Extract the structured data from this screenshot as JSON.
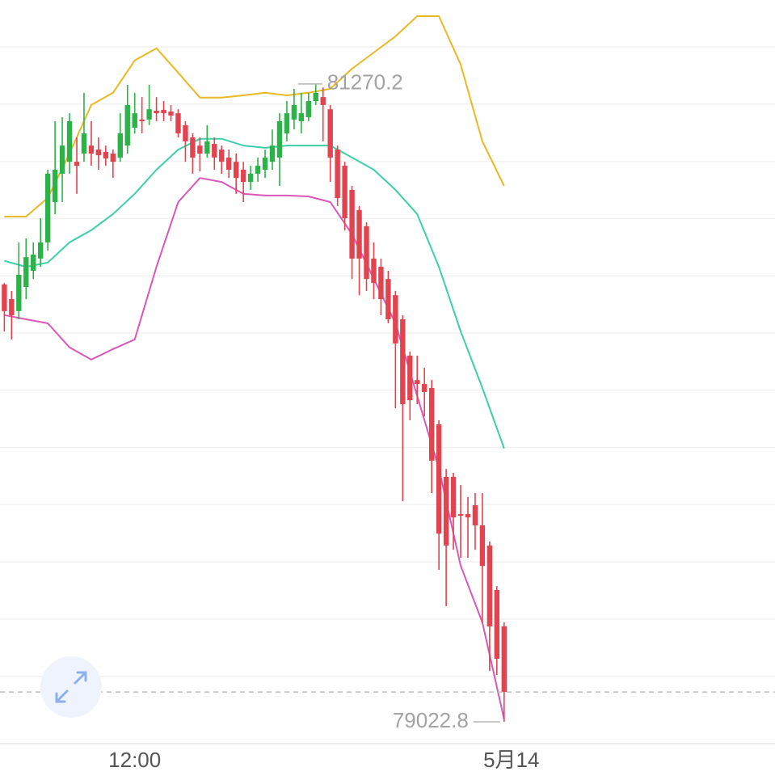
{
  "chart_data": {
    "type": "candlestick",
    "ylim": [
      78946,
      81566
    ],
    "xlim": [
      -0.6,
      106.4
    ],
    "xticks": [
      {
        "value": 18,
        "label": "12:00"
      },
      {
        "value": 70,
        "label": "5月14"
      }
    ],
    "grid": true,
    "up_color": "#2db24a",
    "down_color": "#e2434f",
    "open": [
      80564,
      80512,
      80470,
      80555,
      80612,
      80655,
      80712,
      80854,
      80954,
      80996,
      80996,
      81025,
      81053,
      81039,
      81031,
      81025,
      81011,
      81053,
      81116,
      81145,
      81145,
      81176,
      81179,
      81173,
      81167,
      81125,
      81082,
      81053,
      81025,
      81059,
      81039,
      81011,
      80996,
      80968,
      80925,
      80954,
      80968,
      80996,
      81011,
      81096,
      81145,
      81139,
      81153,
      81210,
      81224,
      81181,
      81039,
      80982,
      80897,
      80826,
      80769,
      80655,
      80626,
      80583,
      80526,
      80441,
      80313,
      80227,
      80213,
      80199,
      80071,
      79886,
      79886,
      79755,
      79755,
      79786,
      79715,
      79644,
      79487,
      79359
    ],
    "high": [
      80569,
      80541,
      80712,
      80726,
      80712,
      80797,
      80968,
      81139,
      81153,
      81167,
      81082,
      81239,
      81139,
      81082,
      81053,
      81039,
      81167,
      81267,
      81239,
      81224,
      81267,
      81224,
      81210,
      81196,
      81181,
      81139,
      81096,
      81082,
      81125,
      81082,
      81053,
      81039,
      81025,
      80996,
      80982,
      81011,
      81039,
      81110,
      81167,
      81210,
      81253,
      81239,
      81239,
      81270.2,
      81258,
      81196,
      81053,
      80996,
      80911,
      80840,
      80783,
      80712,
      80655,
      80612,
      80541,
      80455,
      80327,
      80313,
      80270,
      80227,
      80085,
      79914,
      79900,
      79857,
      79815,
      79829,
      79829,
      79658,
      79501,
      79373
    ],
    "low": [
      80398,
      80370,
      80441,
      80512,
      80583,
      80626,
      80683,
      80811,
      80854,
      80954,
      80883,
      80996,
      80982,
      80968,
      80982,
      80939,
      80996,
      81025,
      81096,
      81096,
      81125,
      81139,
      81139,
      81139,
      81082,
      80996,
      80954,
      80962,
      81011,
      80968,
      80954,
      80939,
      80883,
      80854,
      80897,
      80925,
      80939,
      80968,
      80911,
      81068,
      81110,
      81096,
      81139,
      81196,
      81068,
      80925,
      80840,
      80754,
      80583,
      80526,
      80541,
      80512,
      80455,
      80427,
      80128,
      79800,
      80085,
      80142,
      80099,
      79829,
      79558,
      79430,
      79629,
      79601,
      79601,
      79629,
      79373,
      79202,
      79188,
      79022.8
    ],
    "close": [
      80470,
      80455,
      80598,
      80660,
      80669,
      80712,
      80954,
      80968,
      81053,
      81139,
      80982,
      81096,
      81025,
      81019,
      81008,
      80996,
      81096,
      81196,
      81167,
      81139,
      81181,
      81167,
      81167,
      81159,
      81096,
      81068,
      81011,
      81025,
      81068,
      81011,
      80996,
      80968,
      80939,
      80925,
      80954,
      80982,
      81011,
      81053,
      81139,
      81167,
      81196,
      81167,
      81210,
      81239,
      81196,
      81011,
      80868,
      80797,
      80655,
      80655,
      80583,
      80569,
      80512,
      80441,
      80356,
      80142,
      80156,
      80213,
      80185,
      79943,
      79686,
      79644,
      79743,
      79749,
      79743,
      79715,
      79572,
      79359,
      79245,
      79128
    ],
    "bands": [
      {
        "color": "#e8b923",
        "x": [
          0,
          3,
          6,
          9,
          12,
          15,
          18,
          21,
          24,
          27,
          30,
          33,
          36,
          39,
          42,
          45,
          48,
          51,
          54,
          57,
          60,
          63,
          66,
          69
        ],
        "values": [
          80803,
          80803,
          80869,
          81025,
          81196,
          81239,
          81353,
          81396,
          81310,
          81222,
          81222,
          81230,
          81239,
          81230,
          81239,
          81253,
          81324,
          81381,
          81438,
          81509,
          81509,
          81339,
          81068,
          80911
        ]
      },
      {
        "color": "#3ccfa8",
        "x": [
          0,
          3,
          6,
          9,
          12,
          15,
          18,
          21,
          24,
          27,
          30,
          33,
          36,
          39,
          42,
          45,
          48,
          51,
          54,
          57,
          60,
          63,
          66,
          69
        ],
        "values": [
          80647,
          80626,
          80641,
          80712,
          80755,
          80812,
          80883,
          80968,
          81039,
          81077,
          81077,
          81053,
          81045,
          81053,
          81053,
          81053,
          81011,
          80968,
          80897,
          80812,
          80626,
          80399,
          80199,
          79986
        ]
      },
      {
        "color": "#d957b8",
        "x": [
          0,
          3,
          6,
          9,
          12,
          15,
          18,
          21,
          24,
          27,
          30,
          33,
          36,
          39,
          42,
          45,
          48,
          51,
          54,
          57,
          60,
          63,
          66,
          69
        ],
        "values": [
          80456,
          80441,
          80427,
          80342,
          80299,
          80336,
          80370,
          80626,
          80854,
          80939,
          80925,
          80883,
          80877,
          80877,
          80874,
          80854,
          80741,
          80584,
          80427,
          80171,
          79915,
          79573,
          79373,
          79032
        ]
      }
    ],
    "high_label": 81270.2,
    "low_label": 79022.8
  }
}
